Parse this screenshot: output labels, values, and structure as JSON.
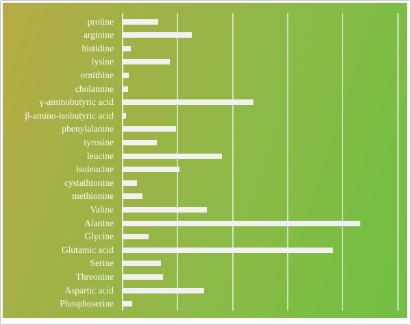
{
  "chart_data": {
    "type": "bar",
    "orientation": "horizontal",
    "title": "",
    "xlabel": "",
    "ylabel": "",
    "categories": [
      "proline",
      "arginine",
      "histidine",
      "lysine",
      "ornithine",
      "cholamine",
      "γ-aminobutyric acid",
      "β-amino-isobutyric acid",
      "phenylalanine",
      "tyrosine",
      "leucine",
      "isoleucine",
      "cystathionine",
      "methionine",
      "Valine",
      "Alanine",
      "Glycine",
      "Glutamic acid",
      "Serine",
      "Threonine",
      "Aspartic acid",
      "Phosphoserine"
    ],
    "values": [
      0.66,
      1.27,
      0.16,
      0.87,
      0.12,
      0.11,
      2.39,
      0.07,
      0.98,
      0.63,
      1.82,
      1.05,
      0.27,
      0.37,
      1.54,
      4.33,
      0.49,
      3.83,
      0.71,
      0.75,
      1.49,
      0.19
    ],
    "value_axis": {
      "min": 0,
      "max": 5.2,
      "gridline_interval": 1,
      "tick_labels_visible": false
    },
    "legend": "none",
    "grid": "vertical-gridlines",
    "notes": "No numeric axis labels are shown; values are in gridline units (1 unit per gridline interval)."
  },
  "colors": {
    "background_gradient_start": "#b6ac44",
    "background_gradient_mid": "#8fb948",
    "background_gradient_end": "#72bf44",
    "bar_fill": "#f1f1ef",
    "gridline": "#eef1e4",
    "label_text": "#fafaf5",
    "frame_border": "#c3c3c3"
  }
}
